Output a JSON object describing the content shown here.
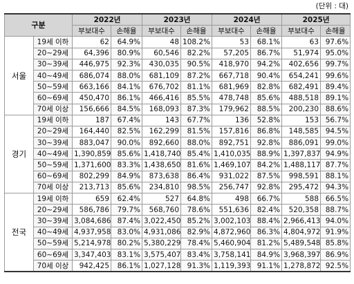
{
  "unit_label": "(단위 : 대)",
  "header": {
    "category": "구분",
    "years": [
      "2022년",
      "2023년",
      "2024년",
      "2025년"
    ],
    "col_count": "부보대수",
    "col_rate": "손해율"
  },
  "regions": [
    {
      "name": "서울",
      "rows": [
        {
          "age": "19세 이하",
          "values": [
            "62",
            "64.9%",
            "48",
            "108.2%",
            "53",
            "68.1%",
            "63",
            "97.6%"
          ]
        },
        {
          "age": "20~29세",
          "values": [
            "64,396",
            "80.9%",
            "60,546",
            "82.2%",
            "57,205",
            "86.7%",
            "51,974",
            "95.0%"
          ]
        },
        {
          "age": "30~39세",
          "values": [
            "446,975",
            "92.3%",
            "430,035",
            "90.5%",
            "418,970",
            "94.2%",
            "402,656",
            "99.7%"
          ]
        },
        {
          "age": "40~49세",
          "values": [
            "686,074",
            "88.0%",
            "681,109",
            "87.2%",
            "667,718",
            "90.4%",
            "654,241",
            "99.6%"
          ]
        },
        {
          "age": "50~59세",
          "values": [
            "663,166",
            "84.1%",
            "676,702",
            "81.1%",
            "681,969",
            "82.8%",
            "682,491",
            "89.4%"
          ]
        },
        {
          "age": "60~69세",
          "values": [
            "450,470",
            "86.1%",
            "466,416",
            "85.5%",
            "478,748",
            "85.6%",
            "488,518",
            "89.1%"
          ]
        },
        {
          "age": "70세 이상",
          "values": [
            "156,666",
            "84.5%",
            "168,093",
            "87.3%",
            "179,962",
            "88.5%",
            "200,230",
            "88.6%"
          ]
        }
      ]
    },
    {
      "name": "경기",
      "rows": [
        {
          "age": "19세 이하",
          "values": [
            "187",
            "67.4%",
            "143",
            "67.7%",
            "136",
            "52.8%",
            "153",
            "56.7%"
          ]
        },
        {
          "age": "20~29세",
          "values": [
            "164,440",
            "82.5%",
            "162,299",
            "81.5%",
            "157,816",
            "86.8%",
            "148,585",
            "94.5%"
          ]
        },
        {
          "age": "30~39세",
          "values": [
            "883,047",
            "90.0%",
            "892,660",
            "88.0%",
            "892,751",
            "92.8%",
            "886,091",
            "99.0%"
          ]
        },
        {
          "age": "40~49세",
          "values": [
            "1,390,859",
            "85.6%",
            "1,418,740",
            "85.4%",
            "1,410,035",
            "88.9%",
            "1,397,837",
            "94.9%"
          ]
        },
        {
          "age": "50~59세",
          "values": [
            "1,371,600",
            "83.3%",
            "1,438,650",
            "81.6%",
            "1,469,107",
            "84.2%",
            "1,488,117",
            "87.7%"
          ]
        },
        {
          "age": "60~69세",
          "values": [
            "802,299",
            "84.9%",
            "873,638",
            "86.4%",
            "931,022",
            "87.5%",
            "998,591",
            "88.1%"
          ]
        },
        {
          "age": "70세 이상",
          "values": [
            "213,713",
            "85.6%",
            "234,810",
            "98.5%",
            "256,747",
            "92.8%",
            "295,472",
            "94.3%"
          ]
        }
      ]
    },
    {
      "name": "전국",
      "rows": [
        {
          "age": "19세 이하",
          "values": [
            "659",
            "62.4%",
            "527",
            "64.8%",
            "498",
            "66.7%",
            "588",
            "66.5%"
          ]
        },
        {
          "age": "20~29세",
          "values": [
            "586,786",
            "79.7%",
            "568,760",
            "78.6%",
            "551,636",
            "82.4%",
            "520,358",
            "88.7%"
          ]
        },
        {
          "age": "30~39세",
          "values": [
            "3,084,686",
            "87.4%",
            "3,022,450",
            "85.2%",
            "3,002,103",
            "88.4%",
            "2,966,413",
            "94.0%"
          ]
        },
        {
          "age": "40~49세",
          "values": [
            "4,937,958",
            "83.0%",
            "4,931,086",
            "82.9%",
            "4,872,960",
            "86.3%",
            "4,804,972",
            "91.9%"
          ]
        },
        {
          "age": "50~59세",
          "values": [
            "5,214,978",
            "80.2%",
            "5,380,229",
            "78.4%",
            "5,460,904",
            "81.2%",
            "5,489,548",
            "85.8%"
          ]
        },
        {
          "age": "60~69세",
          "values": [
            "3,347,403",
            "83.1%",
            "3,575,407",
            "83.4%",
            "3,758,141",
            "84.9%",
            "3,968,397",
            "86.9%"
          ]
        },
        {
          "age": "70세 이상",
          "values": [
            "942,425",
            "86.1%",
            "1,027,128",
            "91.3%",
            "1,119,393",
            "91.1%",
            "1,278,872",
            "92.5%"
          ]
        }
      ]
    }
  ]
}
